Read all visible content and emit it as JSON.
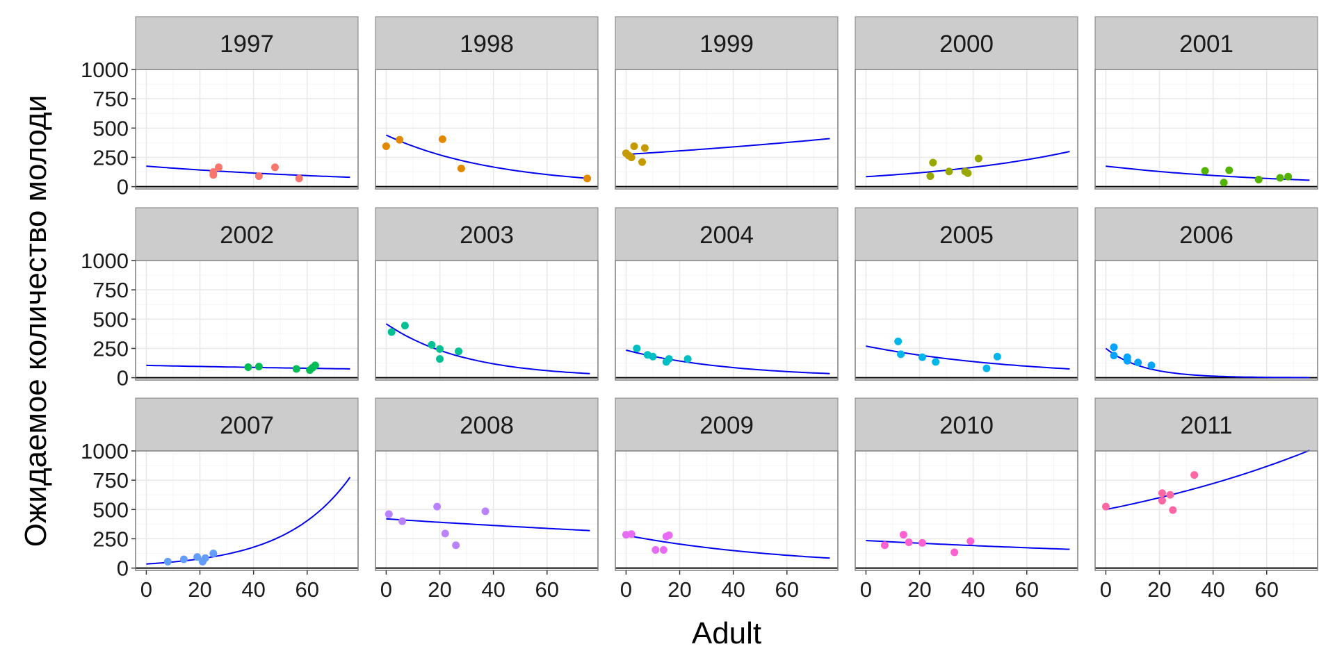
{
  "chart_data": {
    "type": "scatter",
    "xlabel": "Adult",
    "ylabel": "Ожидаемое количество молоди",
    "xlim": [
      -4,
      79
    ],
    "ylim": [
      -20,
      1000
    ],
    "x_ticks": [
      0,
      20,
      40,
      60
    ],
    "y_ticks": [
      0,
      250,
      500,
      750,
      1000
    ],
    "grid": true,
    "colors": {
      "strip_bg": "#cccccc",
      "panel_border": "#7f7f7f",
      "grid_major": "#e8e8e8",
      "grid_minor": "#f4f4f4",
      "fit_line": "#0000ee",
      "zero_line": "#000000"
    },
    "panels": [
      {
        "year": "1997",
        "color": "#F8766D",
        "points": [
          [
            25,
            100
          ],
          [
            25,
            125
          ],
          [
            27,
            165
          ],
          [
            42,
            90
          ],
          [
            48,
            165
          ],
          [
            57,
            70
          ]
        ],
        "curve": [
          [
            0,
            175
          ],
          [
            76,
            80
          ]
        ],
        "curve_shape": "exp"
      },
      {
        "year": "1998",
        "color": "#E38900",
        "points": [
          [
            0,
            345
          ],
          [
            5,
            400
          ],
          [
            21,
            405
          ],
          [
            28,
            155
          ],
          [
            75,
            70
          ]
        ],
        "curve": [
          [
            0,
            440
          ],
          [
            76,
            70
          ]
        ],
        "curve_shape": "exp"
      },
      {
        "year": "1999",
        "color": "#C49A00",
        "points": [
          [
            0,
            285
          ],
          [
            2,
            250
          ],
          [
            3,
            345
          ],
          [
            6,
            210
          ],
          [
            7,
            330
          ],
          [
            1,
            265
          ]
        ],
        "curve": [
          [
            0,
            275
          ],
          [
            76,
            410
          ]
        ],
        "curve_shape": "exp"
      },
      {
        "year": "2000",
        "color": "#99A800",
        "points": [
          [
            24,
            90
          ],
          [
            25,
            205
          ],
          [
            31,
            130
          ],
          [
            37,
            130
          ],
          [
            38,
            115
          ],
          [
            42,
            240
          ]
        ],
        "curve": [
          [
            0,
            85
          ],
          [
            76,
            300
          ]
        ],
        "curve_shape": "exp"
      },
      {
        "year": "2001",
        "color": "#53B400",
        "points": [
          [
            37,
            135
          ],
          [
            44,
            35
          ],
          [
            46,
            140
          ],
          [
            57,
            60
          ],
          [
            65,
            75
          ],
          [
            68,
            85
          ]
        ],
        "curve": [
          [
            0,
            175
          ],
          [
            76,
            55
          ]
        ],
        "curve_shape": "exp"
      },
      {
        "year": "2002",
        "color": "#00BC56",
        "points": [
          [
            38,
            90
          ],
          [
            42,
            95
          ],
          [
            56,
            75
          ],
          [
            61,
            65
          ],
          [
            63,
            105
          ],
          [
            62,
            85
          ]
        ],
        "curve": [
          [
            0,
            105
          ],
          [
            76,
            75
          ]
        ],
        "curve_shape": "exp"
      },
      {
        "year": "2003",
        "color": "#00C094",
        "points": [
          [
            2,
            390
          ],
          [
            7,
            445
          ],
          [
            17,
            280
          ],
          [
            20,
            245
          ],
          [
            20,
            160
          ],
          [
            27,
            225
          ]
        ],
        "curve": [
          [
            0,
            460
          ],
          [
            76,
            35
          ]
        ],
        "curve_shape": "exp"
      },
      {
        "year": "2004",
        "color": "#00BFC4",
        "points": [
          [
            4,
            250
          ],
          [
            8,
            195
          ],
          [
            10,
            180
          ],
          [
            15,
            135
          ],
          [
            16,
            160
          ],
          [
            23,
            160
          ]
        ],
        "curve": [
          [
            0,
            235
          ],
          [
            76,
            35
          ]
        ],
        "curve_shape": "exp"
      },
      {
        "year": "2005",
        "color": "#00B6EB",
        "points": [
          [
            12,
            310
          ],
          [
            13,
            200
          ],
          [
            21,
            175
          ],
          [
            26,
            135
          ],
          [
            45,
            80
          ],
          [
            49,
            180
          ]
        ],
        "curve": [
          [
            0,
            270
          ],
          [
            76,
            75
          ]
        ],
        "curve_shape": "exp"
      },
      {
        "year": "2006",
        "color": "#06A4FF",
        "points": [
          [
            3,
            260
          ],
          [
            3,
            190
          ],
          [
            8,
            175
          ],
          [
            8,
            145
          ],
          [
            12,
            130
          ],
          [
            17,
            105
          ]
        ],
        "curve": [
          [
            0,
            250
          ],
          [
            76,
            0
          ]
        ],
        "curve_shape": "exp"
      },
      {
        "year": "2007",
        "color": "#629DFF",
        "points": [
          [
            8,
            55
          ],
          [
            14,
            75
          ],
          [
            19,
            95
          ],
          [
            21,
            55
          ],
          [
            22,
            85
          ],
          [
            25,
            125
          ]
        ],
        "curve": [
          [
            0,
            35
          ],
          [
            76,
            775
          ]
        ],
        "curve_shape": "exp"
      },
      {
        "year": "2008",
        "color": "#B983FF",
        "points": [
          [
            1,
            460
          ],
          [
            6,
            400
          ],
          [
            19,
            525
          ],
          [
            22,
            295
          ],
          [
            26,
            195
          ],
          [
            37,
            485
          ]
        ],
        "curve": [
          [
            0,
            420
          ],
          [
            76,
            320
          ]
        ],
        "curve_shape": "exp"
      },
      {
        "year": "2009",
        "color": "#E76BF3",
        "points": [
          [
            0,
            285
          ],
          [
            2,
            290
          ],
          [
            11,
            155
          ],
          [
            14,
            155
          ],
          [
            15,
            270
          ],
          [
            16,
            280
          ]
        ],
        "curve": [
          [
            0,
            280
          ],
          [
            76,
            85
          ]
        ],
        "curve_shape": "exp"
      },
      {
        "year": "2010",
        "color": "#FD61D1",
        "points": [
          [
            7,
            195
          ],
          [
            14,
            285
          ],
          [
            16,
            220
          ],
          [
            21,
            215
          ],
          [
            33,
            135
          ],
          [
            39,
            230
          ]
        ],
        "curve": [
          [
            0,
            235
          ],
          [
            76,
            160
          ]
        ],
        "curve_shape": "exp"
      },
      {
        "year": "2011",
        "color": "#FF67A4",
        "points": [
          [
            0,
            525
          ],
          [
            21,
            640
          ],
          [
            21,
            575
          ],
          [
            24,
            625
          ],
          [
            25,
            495
          ],
          [
            33,
            795
          ]
        ],
        "curve": [
          [
            0,
            500
          ],
          [
            76,
            1005
          ]
        ],
        "curve_shape": "exp"
      }
    ]
  }
}
